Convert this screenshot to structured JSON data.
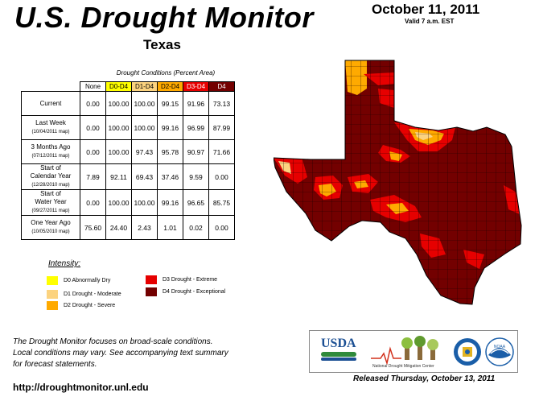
{
  "header": {
    "title": "U.S. Drought Monitor",
    "date": "October 11, 2011",
    "valid": "Valid 7 a.m. EST",
    "region": "Texas"
  },
  "table": {
    "caption": "Drought Conditions (Percent Area)",
    "columns": [
      "None",
      "D0-D4",
      "D1-D4",
      "D2-D4",
      "D3-D4",
      "D4"
    ],
    "rows": [
      {
        "label": "Current",
        "sublabel": "",
        "values": [
          "0.00",
          "100.00",
          "100.00",
          "99.15",
          "91.96",
          "73.13"
        ]
      },
      {
        "label": "Last Week",
        "sublabel": "(10/04/2011 map)",
        "values": [
          "0.00",
          "100.00",
          "100.00",
          "99.16",
          "96.99",
          "87.99"
        ]
      },
      {
        "label": "3 Months Ago",
        "sublabel": "(07/12/2011 map)",
        "values": [
          "0.00",
          "100.00",
          "97.43",
          "95.78",
          "90.97",
          "71.66"
        ]
      },
      {
        "label": "Start of",
        "label2": "Calendar Year",
        "sublabel": "(12/28/2010 map)",
        "values": [
          "7.89",
          "92.11",
          "69.43",
          "37.46",
          "9.59",
          "0.00"
        ]
      },
      {
        "label": "Start of",
        "label2": "Water Year",
        "sublabel": "(09/27/2011 map)",
        "values": [
          "0.00",
          "100.00",
          "100.00",
          "99.16",
          "96.65",
          "85.75"
        ]
      },
      {
        "label": "One Year Ago",
        "sublabel": "(10/05/2010 map)",
        "values": [
          "75.60",
          "24.40",
          "2.43",
          "1.01",
          "0.02",
          "0.00"
        ]
      }
    ]
  },
  "legend": {
    "title": "Intensity:",
    "items": [
      {
        "label": "D0 Abnormally Dry",
        "color": "#ffff00"
      },
      {
        "label": "D1 Drought - Moderate",
        "color": "#fcd37f"
      },
      {
        "label": "D2 Drought - Severe",
        "color": "#ffaa00"
      },
      {
        "label": "D3 Drought - Extreme",
        "color": "#e60000"
      },
      {
        "label": "D4 Drought - Exceptional",
        "color": "#730000"
      }
    ]
  },
  "footer": {
    "note_1": "The Drought Monitor focuses on broad-scale conditions.",
    "note_2": "Local conditions may vary. See accompanying text summary",
    "note_3": "for forecast statements.",
    "url": "http://droughtmonitor.unl.edu",
    "released": "Released Thursday, October 13, 2011"
  },
  "logos": {
    "usda": "USDA",
    "ndmc": "National Drought Mitigation Center",
    "noaa": "NOAA"
  }
}
